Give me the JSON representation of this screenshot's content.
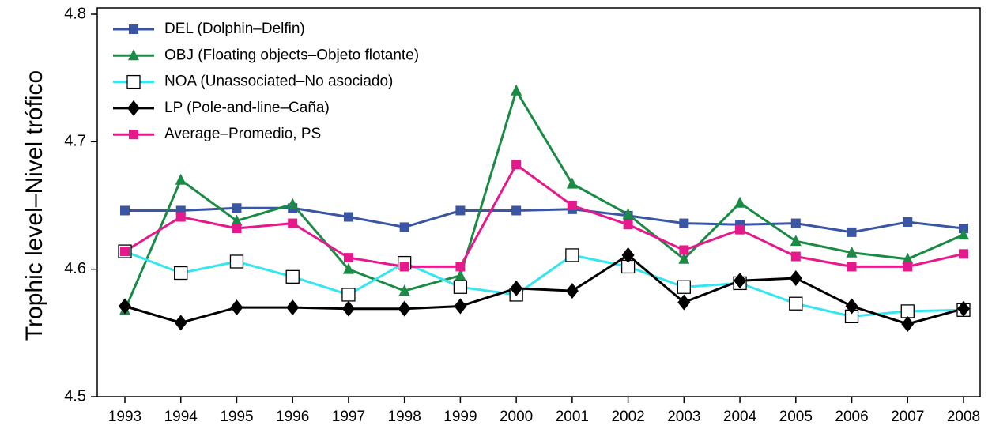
{
  "chart_data": {
    "type": "line",
    "y_label": "Trophic level–Nivel trófico",
    "categories": [
      "1993",
      "1994",
      "1995",
      "1996",
      "1997",
      "1998",
      "1999",
      "2000",
      "2001",
      "2002",
      "2003",
      "2004",
      "2005",
      "2006",
      "2007",
      "2008"
    ],
    "ylim": [
      4.5,
      4.8
    ],
    "yticks": [
      4.5,
      4.6,
      4.7,
      4.8
    ],
    "legend": "upper left",
    "series": [
      {
        "name": "DEL (Dolphin–Delfin)",
        "color": "#3a55a4",
        "marker": "square",
        "values": [
          4.646,
          4.646,
          4.648,
          4.648,
          4.641,
          4.633,
          4.646,
          4.646,
          4.647,
          4.642,
          4.636,
          4.635,
          4.636,
          4.629,
          4.637,
          4.632
        ]
      },
      {
        "name": "OBJ (Floating objects–Objeto flotante)",
        "color": "#1a8a45",
        "marker": "triangle",
        "values": [
          4.568,
          4.67,
          4.638,
          4.651,
          4.6,
          4.583,
          4.595,
          4.74,
          4.667,
          4.643,
          4.608,
          4.652,
          4.622,
          4.613,
          4.608,
          4.627
        ]
      },
      {
        "name": "NOA (Unassociated–No asociado)",
        "color": "#33e6f0",
        "marker": "open-square",
        "values": [
          4.614,
          4.597,
          4.606,
          4.594,
          4.58,
          4.605,
          4.586,
          4.58,
          4.611,
          4.602,
          4.586,
          4.589,
          4.573,
          4.563,
          4.567,
          4.568
        ]
      },
      {
        "name": "LP (Pole-and-line–Caña)",
        "color": "#000000",
        "marker": "diamond",
        "values": [
          4.571,
          4.558,
          4.57,
          4.57,
          4.569,
          4.569,
          4.571,
          4.585,
          4.583,
          4.611,
          4.574,
          4.591,
          4.593,
          4.571,
          4.557,
          4.569
        ]
      },
      {
        "name": "Average–Promedio, PS",
        "color": "#e6198c",
        "marker": "square",
        "values": [
          4.614,
          4.641,
          4.632,
          4.636,
          4.609,
          4.602,
          4.602,
          4.682,
          4.65,
          4.635,
          4.615,
          4.631,
          4.61,
          4.602,
          4.602,
          4.612
        ]
      }
    ]
  }
}
